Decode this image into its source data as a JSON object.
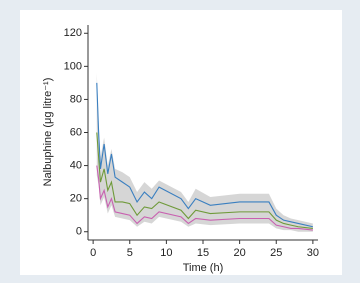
{
  "chart_data": {
    "type": "line",
    "xlabel": "Time (h)",
    "ylabel": "Nalbuphine (μg litre⁻¹)",
    "x": [
      0.5,
      0.75,
      1,
      1.5,
      2,
      2.5,
      3,
      4,
      5,
      6,
      7,
      8,
      9,
      12,
      13,
      14,
      16,
      20,
      24,
      25,
      26,
      27,
      28,
      30
    ],
    "series": [
      {
        "color": "#3a7fc0",
        "values": [
          90,
          60,
          38,
          53,
          35,
          47,
          33,
          30,
          27,
          18,
          24,
          20,
          27,
          20,
          14,
          20,
          16,
          18,
          18,
          10,
          7,
          6,
          5,
          3
        ]
      },
      {
        "color": "#6f9a3a",
        "values": [
          60,
          45,
          30,
          38,
          25,
          30,
          18,
          18,
          17,
          10,
          15,
          14,
          18,
          13,
          8,
          13,
          11,
          12,
          12,
          7,
          5,
          4,
          3,
          2
        ]
      },
      {
        "color": "#c860b0",
        "values": [
          40,
          32,
          20,
          25,
          15,
          20,
          12,
          11,
          10,
          5,
          9,
          8,
          12,
          9,
          5,
          8,
          7,
          8,
          8,
          4,
          3,
          2,
          2,
          1
        ]
      }
    ],
    "band": {
      "color": "#c8c8c8",
      "upper": [
        96,
        66,
        45,
        57,
        40,
        50,
        38,
        36,
        33,
        24,
        30,
        26,
        31,
        24,
        18,
        26,
        21,
        23,
        23,
        14,
        10,
        8,
        7,
        5
      ],
      "lower": [
        34,
        28,
        16,
        21,
        11,
        16,
        9,
        8,
        7,
        3,
        6,
        5,
        9,
        6,
        3,
        5,
        4,
        5,
        5,
        2,
        1,
        1,
        0,
        0
      ]
    },
    "xlim": [
      -0.7,
      30.7
    ],
    "xticks": [
      0,
      5,
      10,
      15,
      20,
      25,
      30
    ],
    "ylim": [
      -5,
      125
    ],
    "yticks": [
      0,
      20,
      40,
      60,
      80,
      100,
      120
    ]
  }
}
